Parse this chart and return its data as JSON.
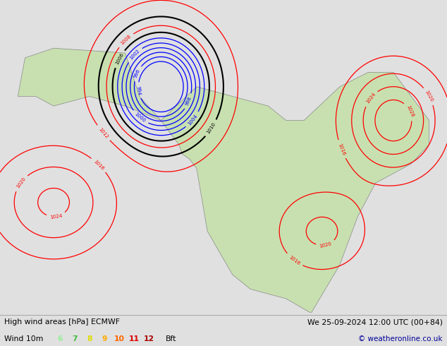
{
  "title_left": "High wind areas [hPa] ECMWF",
  "title_right": "We 25-09-2024 12:00 UTC (00+84)",
  "legend_label": "Wind 10m",
  "legend_values": [
    "6",
    "7",
    "8",
    "9",
    "10",
    "11",
    "12"
  ],
  "legend_colors": [
    "#99ee99",
    "#44bb44",
    "#dddd00",
    "#ffaa00",
    "#ff6600",
    "#dd0000",
    "#aa0000"
  ],
  "bft_label": "Bft",
  "copyright": "© weatheronline.co.uk",
  "bg_color": "#e0e0e0",
  "map_bg": "#c8ddf0",
  "land_light": "#c8e0b0",
  "land_dark": "#a0c888",
  "figsize": [
    6.34,
    4.9
  ],
  "dpi": 100
}
